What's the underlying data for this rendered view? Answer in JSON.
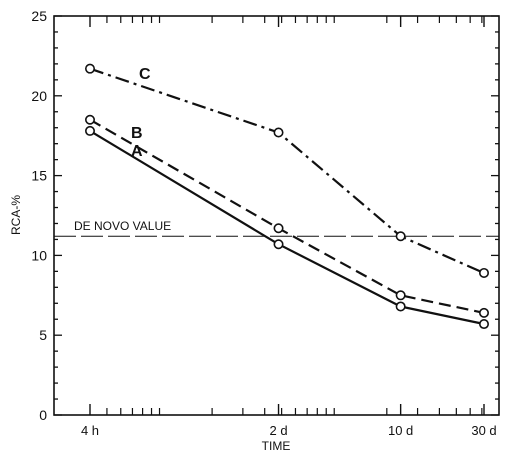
{
  "chart_data": {
    "type": "line",
    "title": "",
    "xlabel": "TIME",
    "ylabel": "RCA-%",
    "x_scale": "log",
    "x_unit": "hours",
    "xlim": [
      4,
      720
    ],
    "ylim": [
      0,
      25
    ],
    "x_ticks": [
      {
        "x": 4,
        "label": "4 h"
      },
      {
        "x": 48,
        "label": "2 d"
      },
      {
        "x": 240,
        "label": "10 d"
      },
      {
        "x": 720,
        "label": "30 d"
      }
    ],
    "y_ticks": [
      0,
      5,
      10,
      15,
      20,
      25
    ],
    "grid": false,
    "legend": "none",
    "series": [
      {
        "name": "A",
        "style": "solid",
        "x": [
          4,
          48,
          240,
          720
        ],
        "y": [
          17.8,
          10.7,
          6.8,
          5.7
        ]
      },
      {
        "name": "B",
        "style": "dashed",
        "x": [
          4,
          48,
          240,
          720
        ],
        "y": [
          18.5,
          11.7,
          7.5,
          6.4
        ]
      },
      {
        "name": "C",
        "style": "dash-dot",
        "x": [
          4,
          48,
          240,
          720
        ],
        "y": [
          21.7,
          17.7,
          11.2,
          8.9
        ]
      }
    ],
    "reference_lines": [
      {
        "label": "DE NOVO VALUE",
        "y": 11.2,
        "style": "long-dash"
      }
    ],
    "color": "#111111"
  }
}
